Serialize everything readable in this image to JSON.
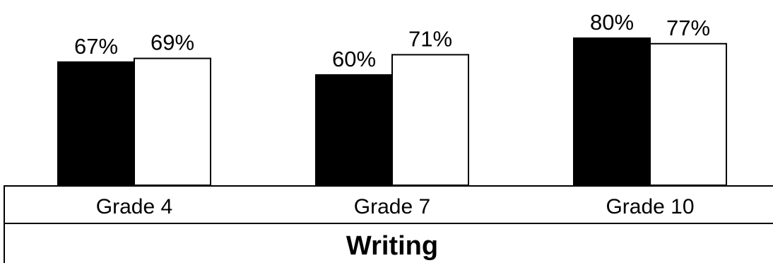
{
  "chart_data": {
    "type": "bar",
    "categories": [
      "Grade 4",
      "Grade 7",
      "Grade 10"
    ],
    "series": [
      {
        "values": [
          67,
          60,
          80
        ],
        "color": "#000000"
      },
      {
        "values": [
          69,
          71,
          77
        ],
        "color": "#ffffff"
      }
    ],
    "data_labels": [
      [
        "67%",
        "60%",
        "80%"
      ],
      [
        "69%",
        "71%",
        "77%"
      ]
    ],
    "group_label": "Writing",
    "ylim": [
      0,
      100
    ],
    "grid": false,
    "legend": "none"
  }
}
